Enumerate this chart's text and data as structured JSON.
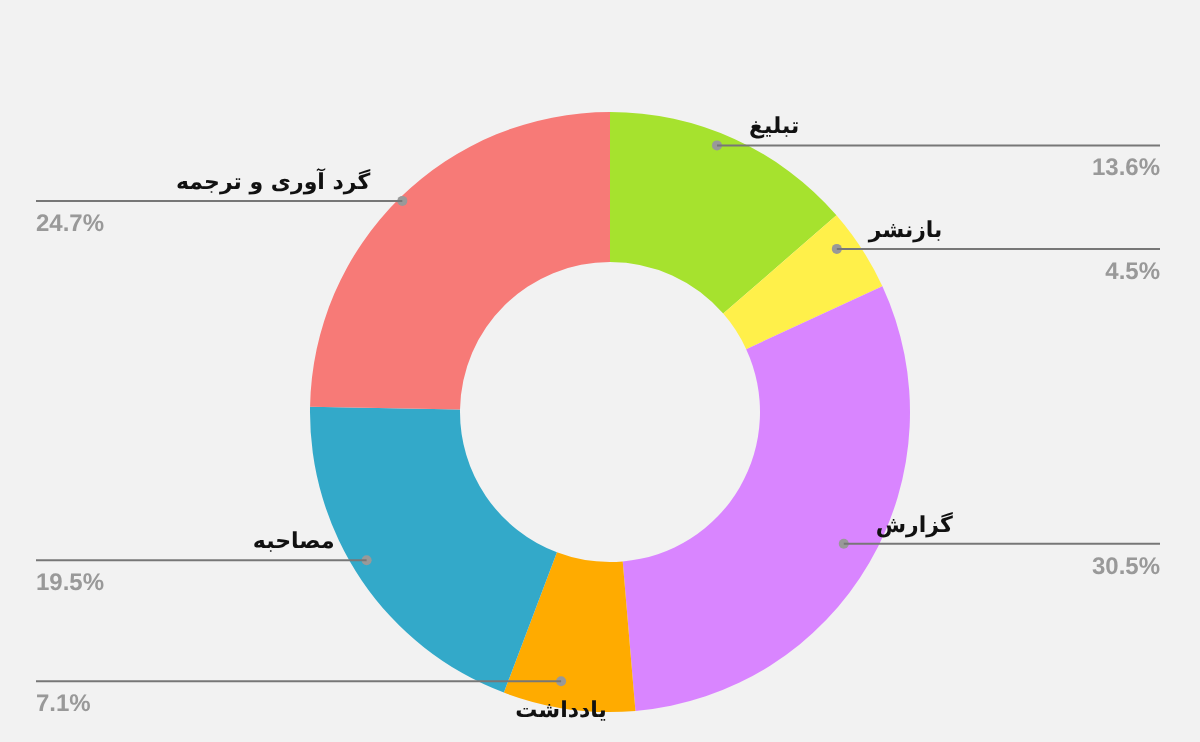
{
  "chart_data": {
    "type": "donut",
    "categories": [
      "تبلیغ",
      "بازنشر",
      "گزارش",
      "یادداشت",
      "مصاحبه",
      "گرد آوری و ترجمه"
    ],
    "values": [
      13.6,
      4.5,
      30.5,
      7.1,
      19.5,
      24.7
    ],
    "colors": [
      "#a6e22e",
      "#fff04a",
      "#d985ff",
      "#ffab00",
      "#33a9c9",
      "#f77a77"
    ],
    "value_labels": [
      "13.6%",
      "4.5%",
      "30.5%",
      "7.1%",
      "19.5%",
      "24.7%"
    ],
    "legend": false
  }
}
